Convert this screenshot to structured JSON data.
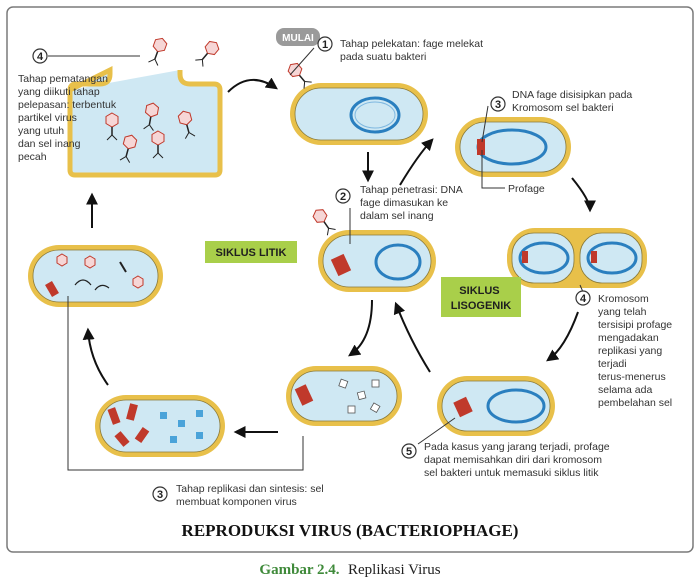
{
  "start_label": "MULAI",
  "steps": {
    "s1": {
      "num": "1",
      "lines": [
        "Tahap pelekatan: fage melekat",
        "pada suatu bakteri"
      ]
    },
    "s2": {
      "num": "2",
      "lines": [
        "Tahap penetrasi: DNA",
        "fage dimasukan ke",
        "dalam sel inang"
      ]
    },
    "s3a": {
      "num": "3",
      "lines": [
        "DNA fage disisipkan pada",
        "Kromosom sel bakteri"
      ]
    },
    "s3b": {
      "num": "3",
      "lines": [
        "Tahap replikasi dan sintesis: sel",
        "membuat komponen virus"
      ]
    },
    "s4a": {
      "num": "4",
      "lines": [
        "Tahap pematangan",
        "yang diikuti tahap",
        "pelepasan: terbentuk",
        "partikel virus",
        "yang utuh",
        "dan sel inang",
        "pecah"
      ]
    },
    "s4b": {
      "num": "4",
      "lines": [
        "Kromosom",
        "yang telah",
        "tersisipi profage",
        "mengadakan",
        "replikasi yang",
        "terjadi",
        "terus-menerus",
        "selama ada",
        "pembelahan sel"
      ]
    },
    "s5": {
      "num": "5",
      "lines": [
        "Pada kasus yang jarang terjadi, profage",
        "dapat memisahkan diri dari kromosom",
        "sel bakteri untuk memasuki siklus litik"
      ]
    }
  },
  "profage_label": "Profage",
  "cycle_litik": "SIKLUS LITIK",
  "cycle_lisogenik": [
    "SIKLUS",
    "LISOGENIK"
  ],
  "title": "REPRODUKSI VIRUS (BACTERIOPHAGE)",
  "caption": {
    "figure": "Gambar 2.4.",
    "text": "Replikasi Virus"
  },
  "colors": {
    "frame": "#7a7a7a",
    "cell_outer": "#e8c04a",
    "cell_inner": "#cfe8f3",
    "dna": "#2a7fbf",
    "phage_dna": "#c0392b",
    "tag_green": "#a9cf4a",
    "caption_green": "#3f8a3a"
  }
}
